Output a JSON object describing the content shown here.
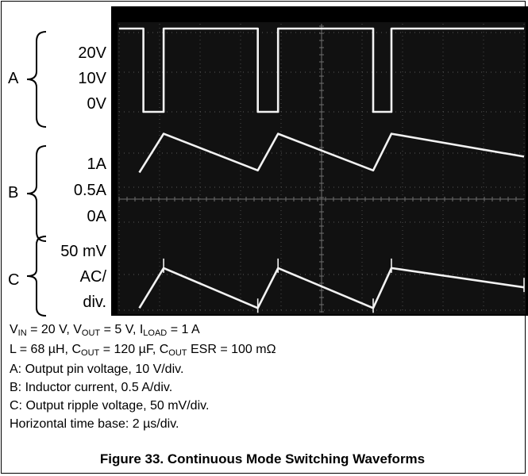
{
  "chart_data": {
    "type": "line",
    "title": "Figure 33. Continuous Mode Switching Waveforms",
    "x_unit": "µs",
    "x_range": [
      0,
      20
    ],
    "horizontal_scale": "2 µs/div",
    "grid": true,
    "background": "#000000",
    "trace_color": "#f2f2f2",
    "channels": [
      {
        "letter": "A",
        "name": "Output pin voltage",
        "scale": "10 V/div",
        "tick_labels": [
          "20V",
          "10V",
          "0V"
        ],
        "y_unit": "V",
        "x": [
          0,
          1.2,
          1.2,
          2.2,
          2.2,
          6.85,
          6.85,
          7.85,
          7.85,
          12.55,
          12.55,
          13.45,
          13.45,
          20
        ],
        "y": [
          21,
          21,
          0,
          0,
          21,
          21,
          0,
          0,
          21,
          21,
          0,
          0,
          21,
          21
        ]
      },
      {
        "letter": "B",
        "name": "Inductor current",
        "scale": "0.5 A/div",
        "tick_labels": [
          "1A",
          "0.5A",
          "0A"
        ],
        "y_unit": "A",
        "x": [
          1.0,
          2.2,
          6.85,
          7.85,
          12.55,
          13.45,
          20
        ],
        "y": [
          0.72,
          1.28,
          0.75,
          1.28,
          0.75,
          1.28,
          0.95
        ]
      },
      {
        "letter": "C",
        "name": "Output ripple voltage",
        "scale": "50 mV/div",
        "tick_labels": [
          "50 mV",
          "AC/",
          "div."
        ],
        "y_unit": "mV",
        "x": [
          1.0,
          2.2,
          6.85,
          7.85,
          12.55,
          13.45,
          20
        ],
        "y": [
          -22,
          34,
          -22,
          34,
          -22,
          34,
          7
        ]
      }
    ]
  },
  "conditions": {
    "line1": {
      "vin_sym": "V",
      "vin_sub": "IN",
      "vin_val": " = 20 V, ",
      "vout_sym": "V",
      "vout_sub": "OUT",
      "vout_val": " = 5 V, ",
      "iload_sym": "I",
      "iload_sub": "LOAD",
      "iload_val": " = 1 A"
    },
    "line2": {
      "l": "L = 68 µH, ",
      "cout_sym": "C",
      "cout_sub": "OUT",
      "cout_val": " = 120 µF, ",
      "esr_sym": "C",
      "esr_sub": "OUT",
      "esr_val": " ESR = 100 mΩ"
    },
    "a": "A: Output pin voltage, 10 V/div.",
    "b": "B: Inductor current, 0.5 A/div.",
    "c": "C: Output ripple voltage, 50 mV/div.",
    "timebase": "Horizontal time base: 2 µs/div."
  }
}
